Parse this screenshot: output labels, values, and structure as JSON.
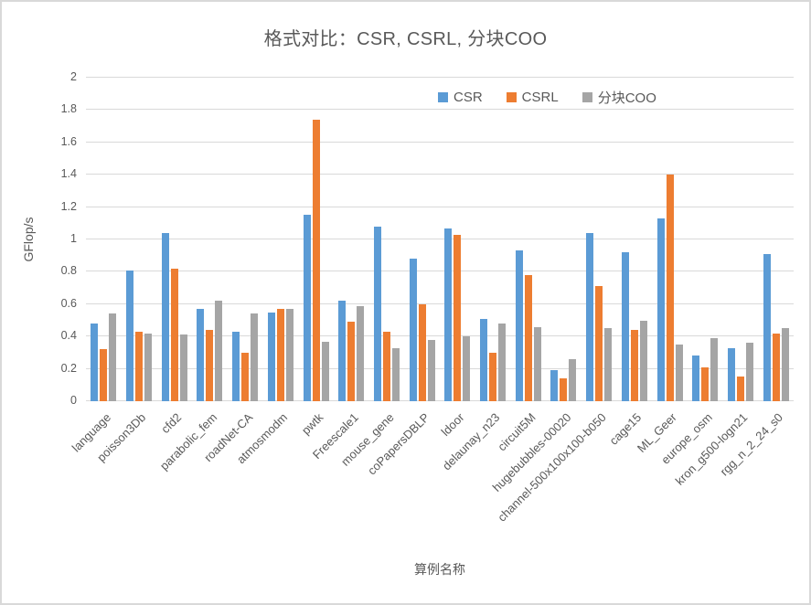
{
  "chart_data": {
    "type": "bar",
    "title": "格式对比：CSR, CSRL, 分块COO",
    "xlabel": "算例名称",
    "ylabel": "GFlop/s",
    "ylim": [
      0,
      2
    ],
    "ytick_labels": [
      "2",
      "1.8",
      "1.6",
      "1.4",
      "1.2",
      "1",
      "0.8",
      "0.6",
      "0.4",
      "0.2",
      "0"
    ],
    "grid": true,
    "legend_position": "top-inside",
    "categories": [
      "language",
      "poisson3Db",
      "cfd2",
      "parabolic_fem",
      "roadNet-CA",
      "atmosmodm",
      "pwtk",
      "Freescale1",
      "mouse_gene",
      "coPapersDBLP",
      "ldoor",
      "delaunay_n23",
      "circuit5M",
      "hugebubbles-00020",
      "channel-500x100x100-b050",
      "cage15",
      "ML_Geer",
      "europe_osm",
      "kron_g500-logn21",
      "rgg_n_2_24_s0"
    ],
    "series": [
      {
        "name": "CSR",
        "color": "#5B9BD5",
        "values": [
          0.48,
          0.81,
          1.04,
          0.57,
          0.43,
          0.55,
          1.15,
          0.62,
          1.08,
          0.88,
          1.07,
          0.51,
          0.93,
          0.19,
          1.04,
          0.92,
          1.13,
          0.28,
          0.33,
          0.91
        ]
      },
      {
        "name": "CSRL",
        "color": "#ED7D31",
        "values": [
          0.32,
          0.43,
          0.82,
          0.44,
          0.3,
          0.57,
          1.74,
          0.49,
          0.43,
          0.6,
          1.03,
          0.3,
          0.78,
          0.14,
          0.71,
          0.44,
          1.4,
          0.21,
          0.15,
          0.42
        ]
      },
      {
        "name": "分块COO",
        "color": "#A5A5A5",
        "values": [
          0.54,
          0.42,
          0.41,
          0.62,
          0.54,
          0.57,
          0.37,
          0.59,
          0.33,
          0.38,
          0.4,
          0.48,
          0.46,
          0.26,
          0.45,
          0.5,
          0.35,
          0.39,
          0.36,
          0.45
        ]
      }
    ],
    "colors": {
      "title_text": "#595959",
      "axis_text": "#595959",
      "gridline": "#D9D9D9",
      "frame_border": "#D9D9D9",
      "background": "#FFFFFF"
    }
  }
}
